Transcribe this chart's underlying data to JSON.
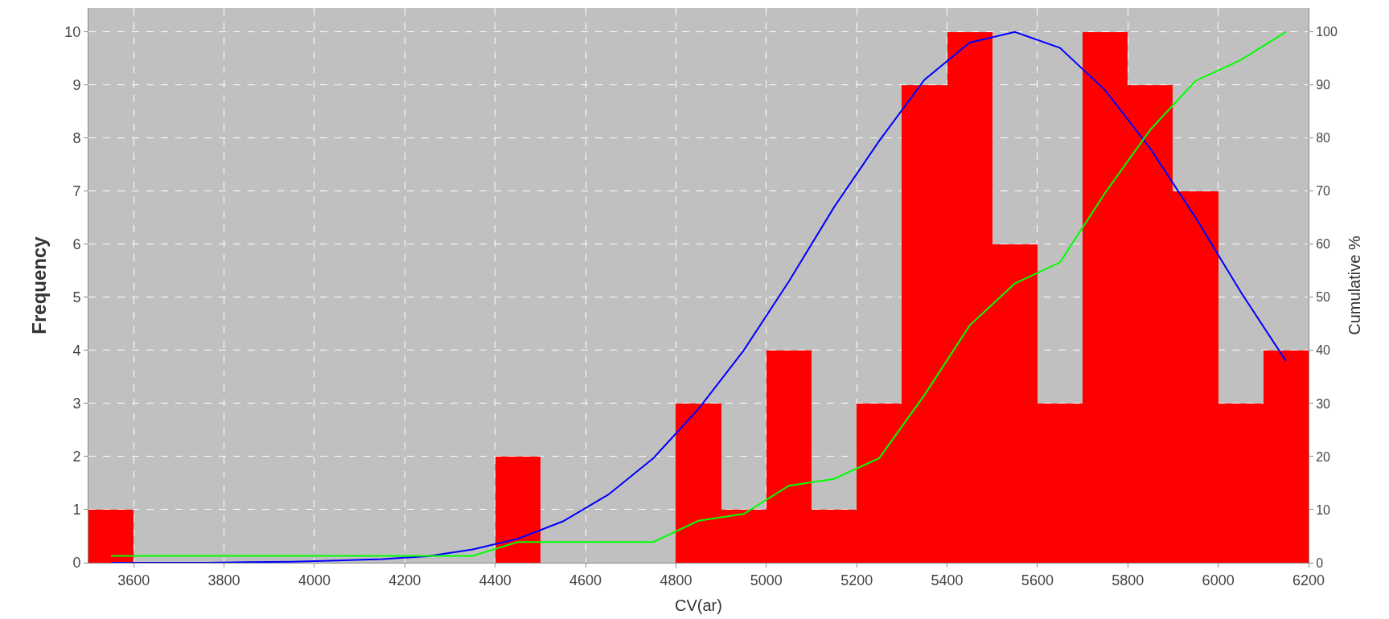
{
  "chart_data": {
    "type": "histogram",
    "xlabel": "CV(ar)",
    "ylabel": "Frequency",
    "y2label": "Cumulative %",
    "bins": [
      3500,
      3600,
      3700,
      3800,
      3900,
      4000,
      4100,
      4200,
      4300,
      4400,
      4500,
      4600,
      4700,
      4800,
      4900,
      5000,
      5100,
      5200,
      5300,
      5400,
      5500,
      5600,
      5700,
      5800,
      5900,
      6000,
      6100,
      6200
    ],
    "values": [
      1,
      0,
      0,
      0,
      0,
      0,
      0,
      0,
      0,
      2,
      0,
      0,
      0,
      3,
      1,
      4,
      1,
      3,
      9,
      10,
      6,
      3,
      10,
      9,
      7,
      3,
      4
    ],
    "color": "#ff0000",
    "series": [
      {
        "type": "line",
        "color": "#0000ff",
        "x": [
          3550,
          3650,
          3750,
          3850,
          3950,
          4050,
          4150,
          4250,
          4350,
          4450,
          4550,
          4650,
          4750,
          4850,
          4950,
          5050,
          5150,
          5250,
          5350,
          5450,
          5550,
          5650,
          5750,
          5850,
          5950,
          6050,
          6150
        ],
        "values": [
          0,
          0,
          0,
          0.01,
          0.02,
          0.04,
          0.07,
          0.12,
          0.25,
          0.45,
          0.78,
          1.28,
          1.97,
          2.9,
          4.0,
          5.3,
          6.7,
          7.95,
          9.1,
          9.8,
          10.0,
          9.7,
          8.9,
          7.8,
          6.5,
          5.1,
          3.8
        ]
      },
      {
        "type": "line",
        "axis": "y2",
        "color": "#00ff00",
        "x": [
          3550,
          3650,
          3750,
          3850,
          3950,
          4050,
          4150,
          4250,
          4350,
          4450,
          4550,
          4650,
          4750,
          4850,
          4950,
          5050,
          5150,
          5250,
          5350,
          5450,
          5550,
          5650,
          5750,
          5850,
          5950,
          6050,
          6150
        ],
        "values": [
          1.3,
          1.3,
          1.3,
          1.3,
          1.3,
          1.3,
          1.3,
          1.3,
          1.3,
          3.9,
          3.9,
          3.9,
          3.9,
          7.9,
          9.2,
          14.5,
          15.8,
          19.7,
          31.6,
          44.7,
          52.6,
          56.6,
          69.7,
          81.6,
          90.8,
          94.7,
          100
        ]
      }
    ],
    "xlim": [
      3500,
      6200
    ],
    "xticks": [
      3600,
      3800,
      4000,
      4200,
      4400,
      4600,
      4800,
      5000,
      5200,
      5400,
      5600,
      5800,
      6000,
      6200
    ],
    "ylim": [
      0,
      10.45
    ],
    "yticks": [
      0,
      1,
      2,
      3,
      4,
      5,
      6,
      7,
      8,
      9,
      10
    ],
    "y2lim": [
      0,
      104.5
    ],
    "y2ticks": [
      0,
      10,
      20,
      30,
      40,
      50,
      60,
      70,
      80,
      90,
      100
    ],
    "grid": true
  }
}
